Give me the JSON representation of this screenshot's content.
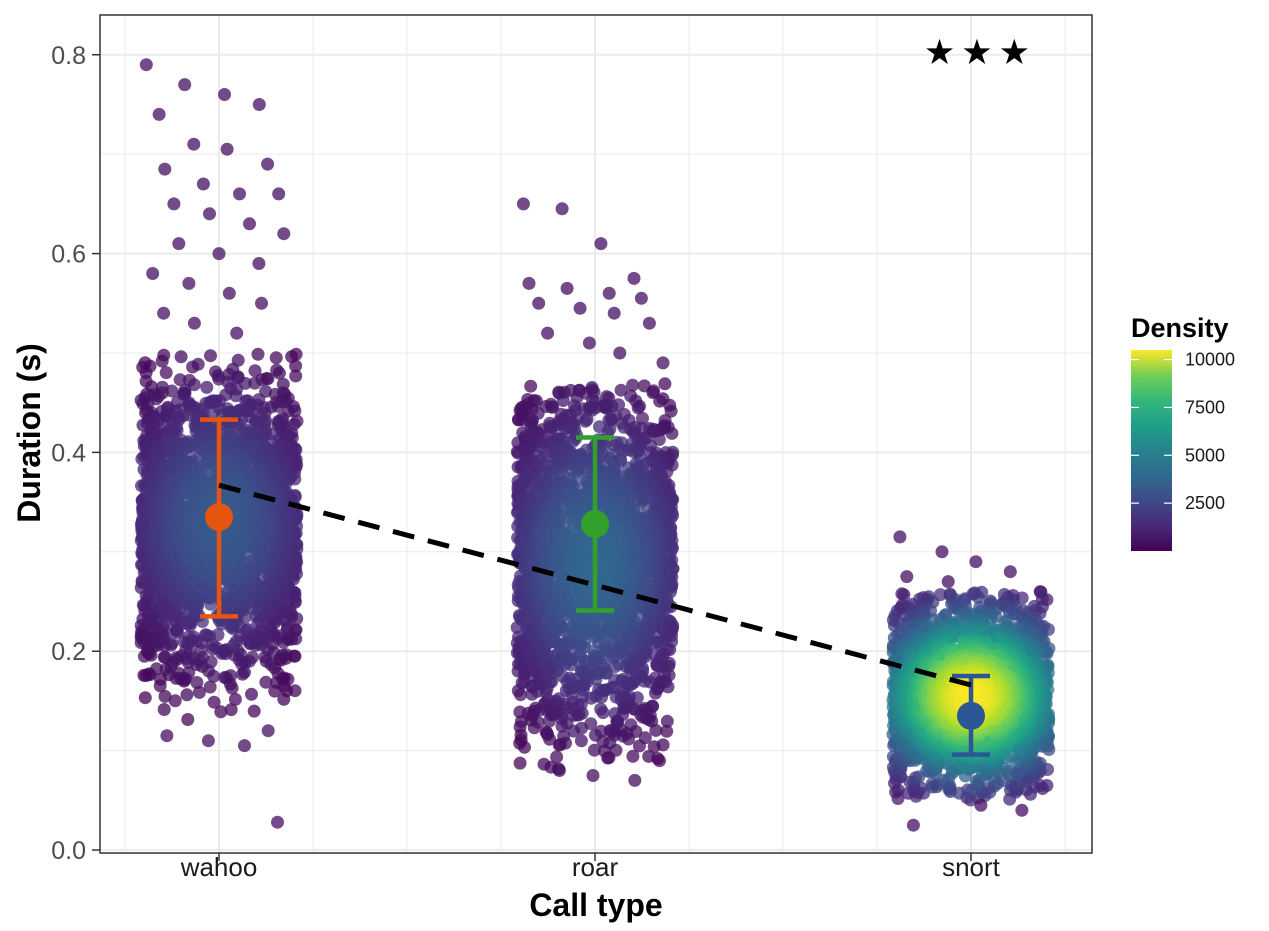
{
  "chart_data": {
    "type": "scatter",
    "xlabel": "Call type",
    "ylabel": "Duration (s)",
    "categories": [
      "wahoo",
      "roar",
      "snort"
    ],
    "ylim": [
      -0.003,
      0.84
    ],
    "y_ticks": [
      "0.0",
      "0.2",
      "0.4",
      "0.6",
      "0.8"
    ],
    "grid": true,
    "theme": "bw",
    "jitter_points": [
      {
        "category": "wahoo",
        "y_range": [
          0.13,
          0.5
        ],
        "dense_range": [
          0.18,
          0.48
        ],
        "density_max": 3000
      },
      {
        "category": "roar",
        "y_range": [
          0.08,
          0.47
        ],
        "dense_range": [
          0.12,
          0.46
        ],
        "density_max": 3500
      },
      {
        "category": "snort",
        "y_range": [
          0.05,
          0.26
        ],
        "dense_range": [
          0.06,
          0.25
        ],
        "density_max": 10500
      }
    ],
    "outliers": [
      {
        "category": "wahoo",
        "values": [
          0.79,
          0.77,
          0.76,
          0.75,
          0.74,
          0.71,
          0.705,
          0.69,
          0.685,
          0.67,
          0.66,
          0.66,
          0.65,
          0.64,
          0.63,
          0.62,
          0.61,
          0.6,
          0.59,
          0.58,
          0.57,
          0.56,
          0.55,
          0.54,
          0.53,
          0.52,
          0.12,
          0.115,
          0.11,
          0.105,
          0.028
        ]
      },
      {
        "category": "roar",
        "values": [
          0.65,
          0.645,
          0.61,
          0.575,
          0.57,
          0.565,
          0.56,
          0.555,
          0.55,
          0.545,
          0.54,
          0.53,
          0.52,
          0.51,
          0.5,
          0.49,
          0.08,
          0.075,
          0.07
        ]
      },
      {
        "category": "snort",
        "values": [
          0.315,
          0.3,
          0.29,
          0.28,
          0.275,
          0.27,
          0.045,
          0.04,
          0.025
        ]
      }
    ],
    "means": [
      {
        "category": "wahoo",
        "mean": 0.335,
        "lower": 0.235,
        "upper": 0.433,
        "color": "#e6550d"
      },
      {
        "category": "roar",
        "mean": 0.328,
        "lower": 0.241,
        "upper": 0.415,
        "color": "#33a02c"
      },
      {
        "category": "snort",
        "mean": 0.135,
        "lower": 0.096,
        "upper": 0.175,
        "color": "#2c5796"
      }
    ],
    "trend_line": {
      "style": "dashed",
      "color": "#000000",
      "x": [
        "wahoo",
        "snort"
      ],
      "y": [
        0.367,
        0.166
      ]
    },
    "significance": {
      "text": "★★★",
      "category": "snort",
      "y": 0.79
    },
    "legend": {
      "title": "Density",
      "placement": "right",
      "type": "colorbar",
      "palette": "viridis",
      "min": 0,
      "max": 10500,
      "ticks": [
        "2500",
        "5000",
        "7500",
        "10000"
      ],
      "tick_values": [
        2500,
        5000,
        7500,
        10000
      ]
    }
  }
}
